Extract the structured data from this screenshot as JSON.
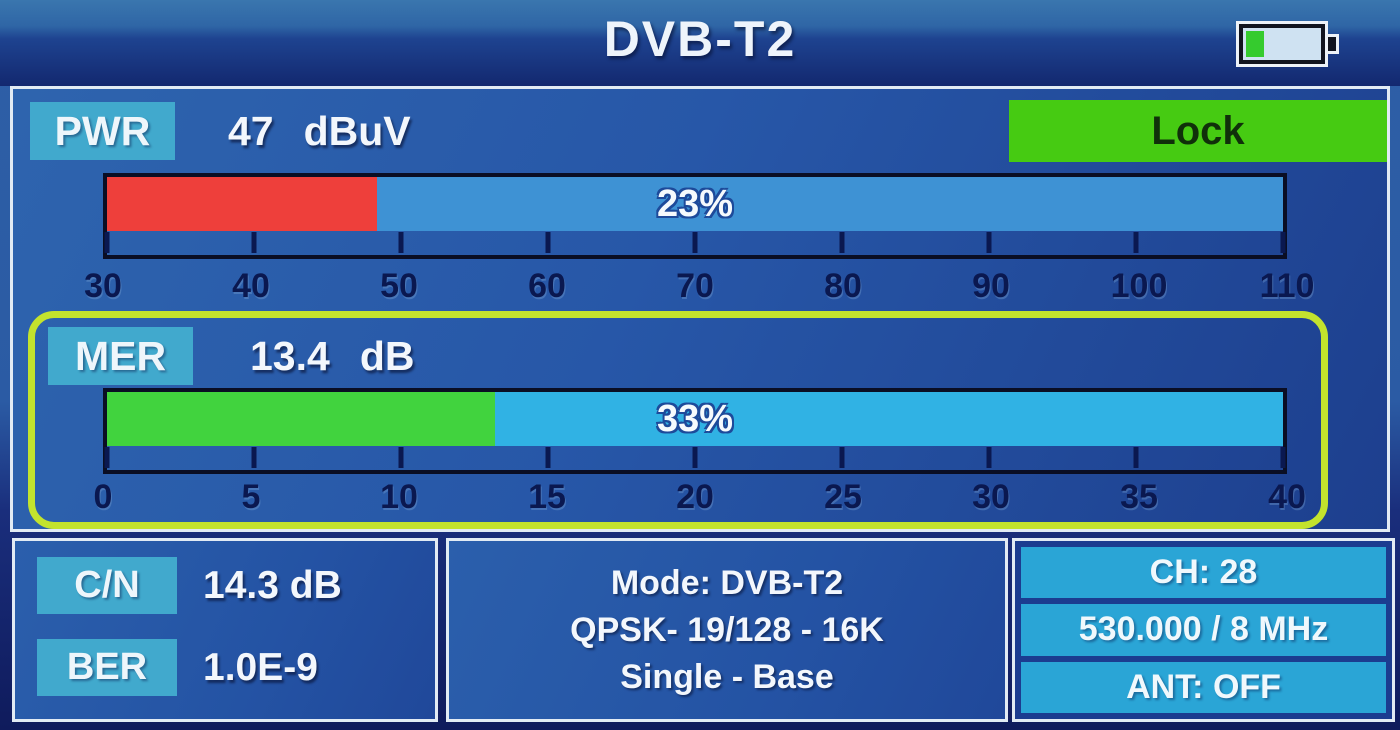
{
  "header": {
    "title": "DVB-T2",
    "battery_percent": 25
  },
  "pwr": {
    "label": "PWR",
    "value": "47",
    "unit": "dBuV",
    "lock_label": "Lock",
    "bar": {
      "percent": 23,
      "percent_label": "23%",
      "fill_color": "#ee3f3b",
      "track_color": "#3e92d4",
      "scale": [
        "30",
        "40",
        "50",
        "60",
        "70",
        "80",
        "90",
        "100",
        "110"
      ]
    }
  },
  "mer": {
    "label": "MER",
    "value": "13.4",
    "unit": "dB",
    "bar": {
      "percent": 33,
      "percent_label": "33%",
      "fill_color": "#41d33e",
      "track_color": "#30b2e4",
      "scale": [
        "0",
        "5",
        "10",
        "15",
        "20",
        "25",
        "30",
        "35",
        "40"
      ]
    }
  },
  "signal": {
    "cn_label": "C/N",
    "cn_value": "14.3 dB",
    "ber_label": "BER",
    "ber_value": "1.0E-9"
  },
  "mode": {
    "line1": "Mode: DVB-T2",
    "line2": "QPSK- 19/128 - 16K",
    "line3": "Single - Base"
  },
  "channel": {
    "ch": "CH: 28",
    "freq": "530.000 / 8 MHz",
    "ant": "ANT: OFF"
  },
  "colors": {
    "lock_green": "#46cb12",
    "highlight_border": "#c3e32d",
    "badge_cyan": "#41a9cd",
    "row_cyan": "#2aa5d6"
  }
}
